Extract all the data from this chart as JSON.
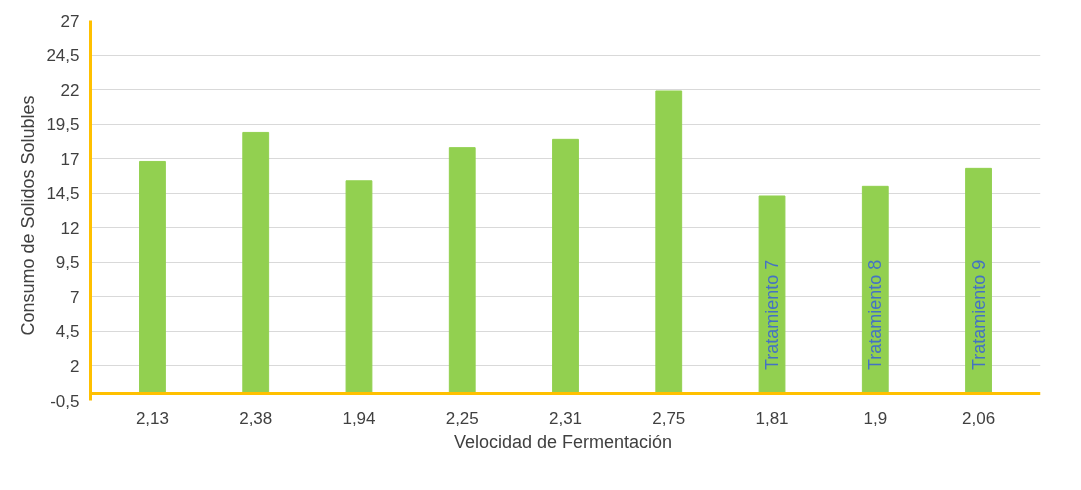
{
  "chart_data": {
    "type": "bar",
    "xlabel": "Velocidad  de Fermentación",
    "ylabel": "Consumo  de Solidos  Solubles",
    "categories": [
      "2,13",
      "2,38",
      "1,94",
      "2,25",
      "2,31",
      "2,75",
      "1,81",
      "1,9",
      "2,06"
    ],
    "values": [
      16.8,
      18.9,
      15.4,
      17.8,
      18.4,
      21.9,
      14.3,
      15.0,
      16.3
    ],
    "color": "#92d050",
    "ylim": [
      -0.5,
      27
    ],
    "yticks": [
      {
        "value": -0.5,
        "label": "-0,5"
      },
      2,
      {
        "value": 4.5,
        "label": "4,5"
      },
      7,
      {
        "value": 9.5,
        "label": "9,5"
      },
      12,
      {
        "value": 14.5,
        "label": "14,5"
      },
      17,
      {
        "value": 19.5,
        "label": "19,5"
      },
      22,
      {
        "value": 24.5,
        "label": "24,5"
      },
      27
    ],
    "grid": "y",
    "annotations": [
      "Tratamiento 7",
      "Tratamiento 8",
      "Tratamiento 9"
    ]
  }
}
